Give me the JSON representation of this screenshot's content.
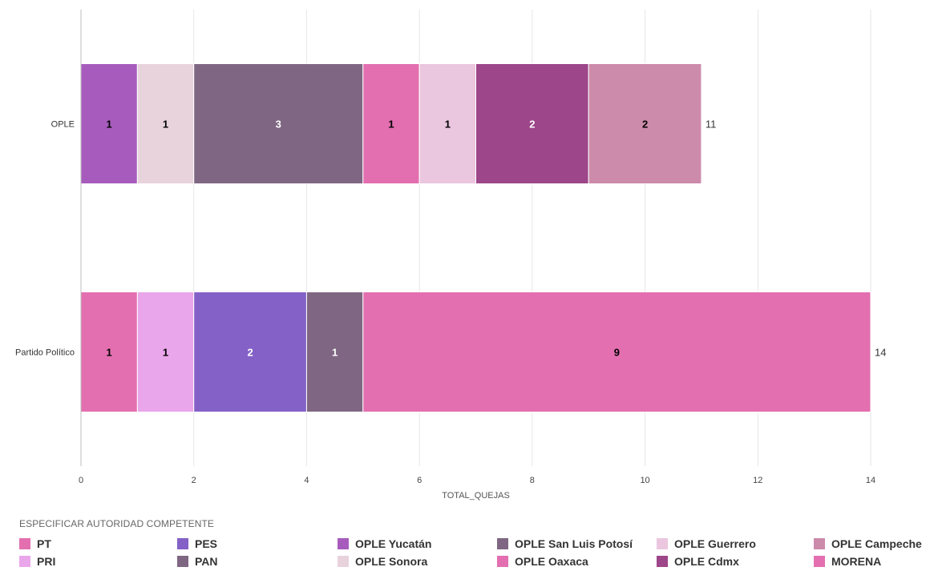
{
  "chart_data": {
    "type": "bar",
    "orientation": "horizontal",
    "stacked": true,
    "categories": [
      "OPLE",
      "Partido Político"
    ],
    "xlabel": "TOTAL_QUEJAS",
    "xlim": [
      0,
      14
    ],
    "xticks": [
      0,
      2,
      4,
      6,
      8,
      10,
      12,
      14
    ],
    "grid": true,
    "totals": [
      11,
      14
    ],
    "legend_title": "ESPECIFICAR AUTORIDAD COMPETENTE",
    "legend_position": "bottom",
    "series": [
      {
        "name": "PT",
        "color": "#e36fb0",
        "values": [
          0,
          1
        ]
      },
      {
        "name": "PRI",
        "color": "#eaa6ea",
        "values": [
          0,
          1
        ]
      },
      {
        "name": "PES",
        "color": "#8461c7",
        "values": [
          0,
          2
        ]
      },
      {
        "name": "PAN",
        "color": "#7f6783",
        "values": [
          0,
          1
        ]
      },
      {
        "name": "OPLE Yucatán",
        "color": "#a75cbd",
        "values": [
          1,
          0
        ]
      },
      {
        "name": "OPLE Sonora",
        "color": "#e8d3dc",
        "values": [
          1,
          0
        ]
      },
      {
        "name": "OPLE San Luis Potosí",
        "color": "#7f6783",
        "values": [
          3,
          0
        ]
      },
      {
        "name": "OPLE Oaxaca",
        "color": "#e36fb0",
        "values": [
          1,
          0
        ]
      },
      {
        "name": "OPLE Guerrero",
        "color": "#ebc6df",
        "values": [
          1,
          0
        ]
      },
      {
        "name": "OPLE Cdmx",
        "color": "#9d4689",
        "values": [
          2,
          0
        ]
      },
      {
        "name": "OPLE Campeche",
        "color": "#cc8baa",
        "values": [
          2,
          0
        ]
      },
      {
        "name": "MORENA",
        "color": "#e36fb0",
        "values": [
          0,
          9
        ]
      }
    ],
    "stack_order": [
      [
        "OPLE Yucatán",
        "OPLE Sonora",
        "OPLE San Luis Potosí",
        "OPLE Oaxaca",
        "OPLE Guerrero",
        "OPLE Cdmx",
        "OPLE Campeche"
      ],
      [
        "PT",
        "PRI",
        "PES",
        "PAN",
        "MORENA"
      ]
    ],
    "label_colors": {
      "OPLE Yucatán": "#000000",
      "OPLE Sonora": "#000000",
      "OPLE San Luis Potosí": "#ffffff",
      "OPLE Oaxaca": "#000000",
      "OPLE Guerrero": "#000000",
      "OPLE Cdmx": "#ffffff",
      "OPLE Campeche": "#000000",
      "PT": "#000000",
      "PRI": "#000000",
      "PES": "#ffffff",
      "PAN": "#ffffff",
      "MORENA": "#000000"
    },
    "legend_order": [
      "PT",
      "PES",
      "OPLE Yucatán",
      "OPLE San Luis Potosí",
      "OPLE Guerrero",
      "OPLE Campeche",
      "PRI",
      "PAN",
      "OPLE Sonora",
      "OPLE Oaxaca",
      "OPLE Cdmx",
      "MORENA"
    ]
  }
}
